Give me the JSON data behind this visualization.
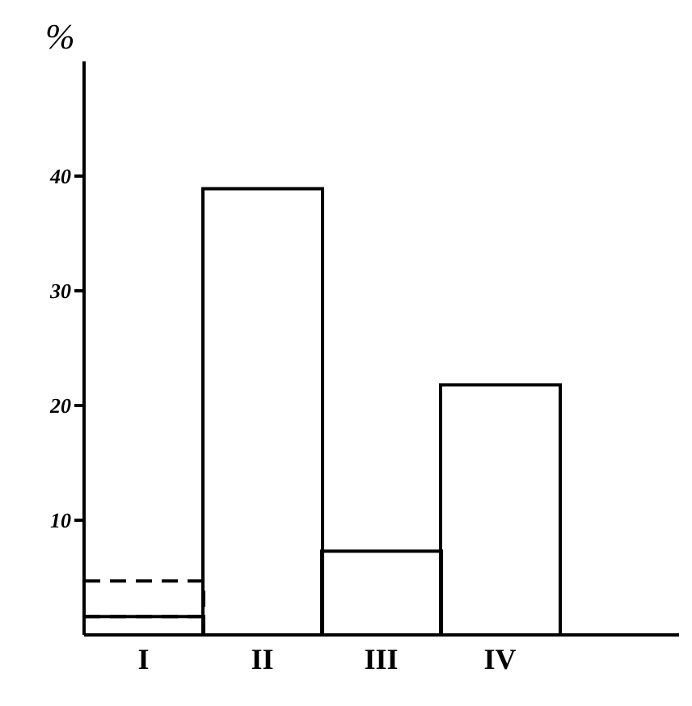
{
  "chart_data": {
    "type": "bar",
    "ylabel": "%",
    "categories": [
      "I",
      "II",
      "III",
      "IV"
    ],
    "series": [
      {
        "type": "bar",
        "color": "#000000",
        "values": [
          1.6,
          38.9,
          7.3,
          21.8
        ]
      },
      {
        "type": "bar",
        "color": "#000000",
        "line_style": "dashed",
        "values": [
          3.1,
          null,
          null,
          null
        ]
      }
    ],
    "stacked": true,
    "ylim": [
      0,
      50
    ],
    "yticks": [
      10,
      20,
      30,
      40
    ],
    "grid": false,
    "legend": false
  }
}
